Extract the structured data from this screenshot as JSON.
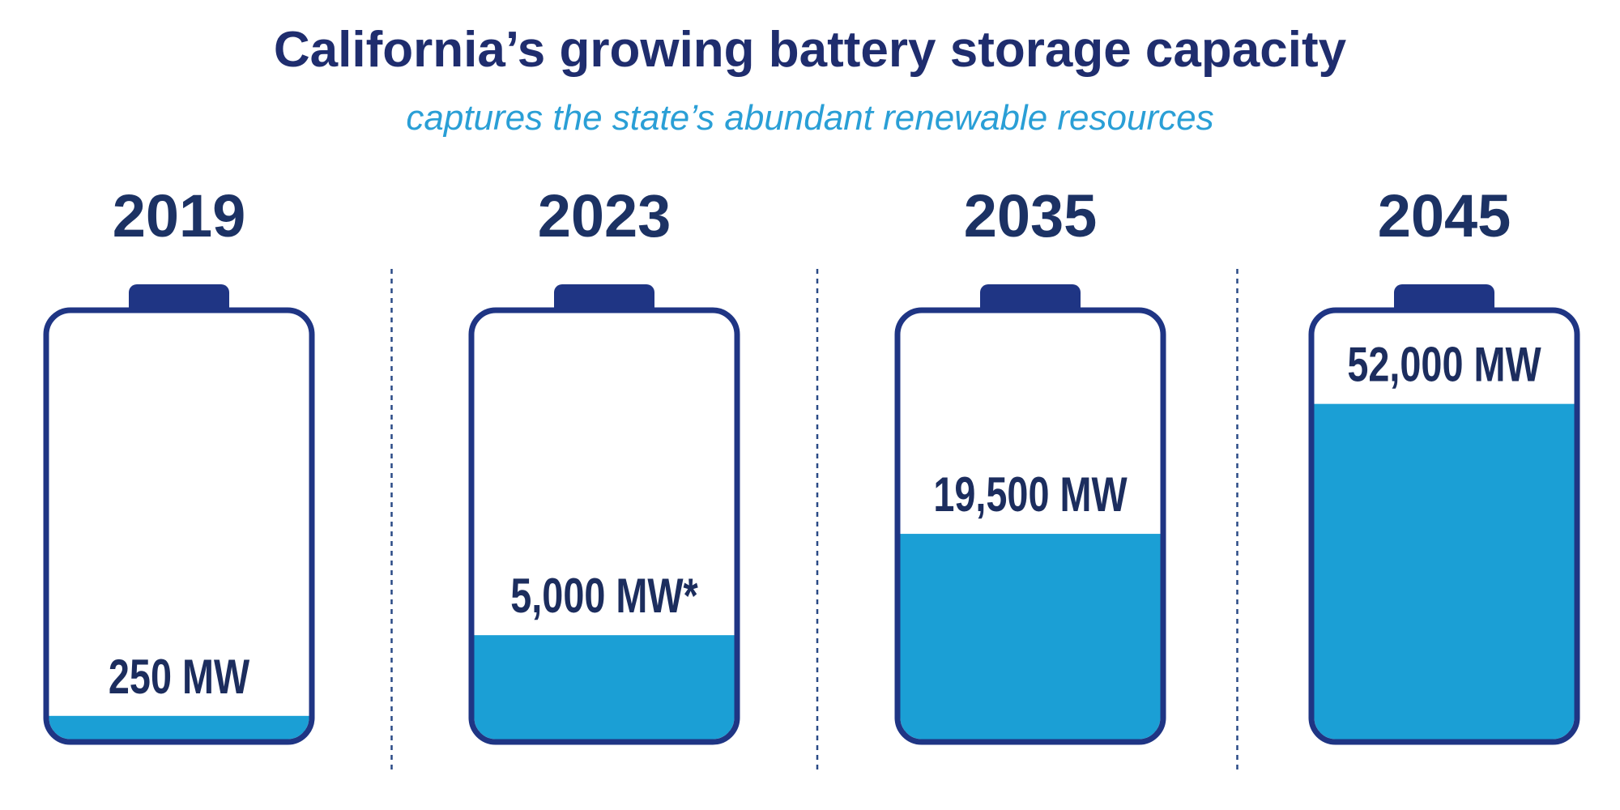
{
  "chart_data": {
    "type": "battery",
    "title": "California’s growing battery storage capacity",
    "subtitle": "captures the state’s abundant renewable resources",
    "categories": [
      "2019",
      "2023",
      "2035",
      "2045"
    ],
    "values": [
      250,
      5000,
      19500,
      52000
    ],
    "value_labels": [
      "250 MW",
      "5,000 MW*",
      "19,500 MW",
      "52,000 MW"
    ],
    "color": "#1b9fd5",
    "scale": "sqrt",
    "ylim": [
      0,
      84000
    ]
  }
}
